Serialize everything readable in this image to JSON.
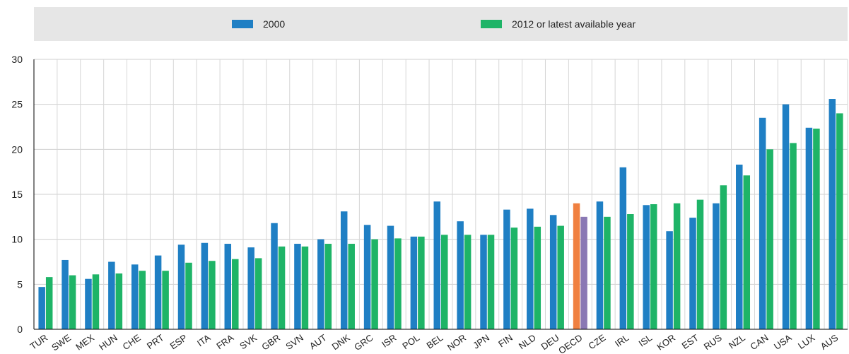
{
  "chart_data": {
    "type": "bar",
    "title": "",
    "xlabel": "",
    "ylabel": "",
    "ylim": [
      0,
      30
    ],
    "yticks": [
      0,
      5,
      10,
      15,
      20,
      25,
      30
    ],
    "grid": true,
    "legend_position": "top",
    "categories": [
      "TUR",
      "SWE",
      "MEX",
      "HUN",
      "CHE",
      "PRT",
      "ESP",
      "ITA",
      "FRA",
      "SVK",
      "GBR",
      "SVN",
      "AUT",
      "DNK",
      "GRC",
      "ISR",
      "POL",
      "BEL",
      "NOR",
      "JPN",
      "FIN",
      "NLD",
      "DEU",
      "OECD",
      "CZE",
      "IRL",
      "ISL",
      "KOR",
      "EST",
      "RUS",
      "NZL",
      "CAN",
      "USA",
      "LUX",
      "AUS"
    ],
    "highlight_category": "OECD",
    "series": [
      {
        "name": "2000",
        "color": "#1f7fc4",
        "highlight_color": "#f08040",
        "values": [
          4.7,
          7.7,
          5.6,
          7.5,
          7.2,
          8.2,
          9.4,
          9.6,
          9.5,
          9.1,
          11.8,
          9.5,
          10.0,
          13.1,
          11.6,
          11.5,
          10.3,
          14.2,
          12.0,
          10.5,
          13.3,
          13.4,
          12.7,
          14.0,
          14.2,
          18.0,
          13.8,
          10.9,
          12.4,
          14.0,
          18.3,
          23.5,
          25.0,
          22.4,
          25.6
        ]
      },
      {
        "name": "2012 or latest available year",
        "color": "#1eb467",
        "highlight_color": "#8a78b4",
        "values": [
          5.8,
          6.0,
          6.1,
          6.2,
          6.5,
          6.5,
          7.4,
          7.6,
          7.8,
          7.9,
          9.2,
          9.2,
          9.5,
          9.5,
          10.0,
          10.1,
          10.3,
          10.5,
          10.5,
          10.5,
          11.3,
          11.4,
          11.5,
          12.5,
          12.5,
          12.8,
          13.9,
          14.0,
          14.4,
          16.0,
          17.1,
          20.0,
          20.7,
          22.3,
          24.0
        ]
      }
    ]
  }
}
